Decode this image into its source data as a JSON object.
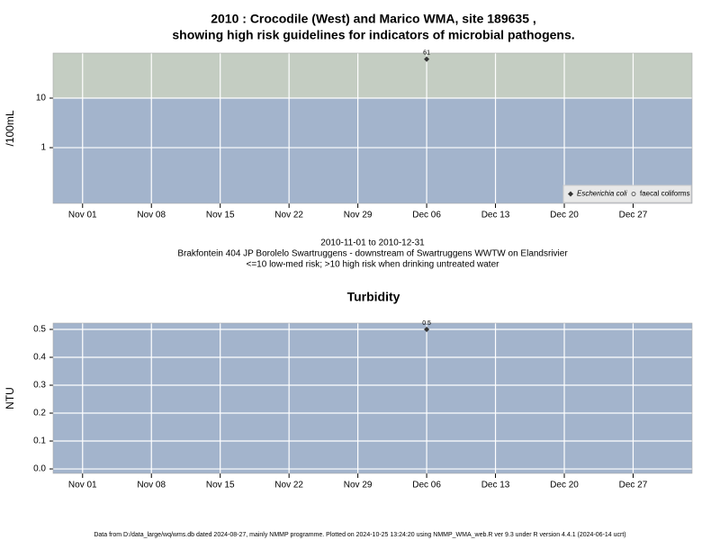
{
  "chart_data": [
    {
      "type": "scatter",
      "title": [
        "2010 : Crocodile (West) and Marico WMA, site 189635 ,",
        "showing high risk guidelines for indicators of microbial pathogens."
      ],
      "y_label": "/100mL",
      "log_scale": true,
      "ylim": [
        0.075,
        81
      ],
      "yticks": [
        1,
        10
      ],
      "xlim": [
        "2010-10-29",
        "2011-01-02"
      ],
      "xticks": [
        {
          "value": "2010-11-01",
          "label": "Nov 01"
        },
        {
          "value": "2010-11-08",
          "label": "Nov 08"
        },
        {
          "value": "2010-11-15",
          "label": "Nov 15"
        },
        {
          "value": "2010-11-22",
          "label": "Nov 22"
        },
        {
          "value": "2010-11-29",
          "label": "Nov 29"
        },
        {
          "value": "2010-12-06",
          "label": "Dec 06"
        },
        {
          "value": "2010-12-13",
          "label": "Dec 13"
        },
        {
          "value": "2010-12-20",
          "label": "Dec 20"
        },
        {
          "value": "2010-12-27",
          "label": "Dec 27"
        }
      ],
      "grid": true,
      "guideline": 10,
      "high_risk_color": "#c4cdc2",
      "low_risk_color": "#a3b4cc",
      "legend": "bottom-right",
      "series": [
        {
          "name": "Escherichia coli",
          "color": "#333333",
          "marker": "diamond",
          "x": [
            "2010-12-06"
          ],
          "values": [
            61
          ]
        },
        {
          "name": "faecal coliforms",
          "color": "#333333",
          "marker": "circle",
          "x": [],
          "values": []
        }
      ],
      "caption": [
        "2010-11-01 to 2010-12-31",
        "Brakfontein 404 JP Borolelo Swartruggens - downstream of Swartruggens WWTW on Elandsrivier",
        "<=10 low-med risk; >10 high risk when drinking untreated water"
      ]
    },
    {
      "type": "scatter",
      "title": [
        "Turbidity"
      ],
      "y_label": "NTU",
      "log_scale": false,
      "ylim": [
        -0.016,
        0.5226
      ],
      "yticks": [
        {
          "value": 0,
          "label": "0.0"
        },
        0.1,
        0.2,
        0.3,
        0.4,
        0.5
      ],
      "xlim": [
        "2010-10-29",
        "2011-01-02"
      ],
      "xticks": [
        {
          "value": "2010-11-01",
          "label": "Nov 01"
        },
        {
          "value": "2010-11-08",
          "label": "Nov 08"
        },
        {
          "value": "2010-11-15",
          "label": "Nov 15"
        },
        {
          "value": "2010-11-22",
          "label": "Nov 22"
        },
        {
          "value": "2010-11-29",
          "label": "Nov 29"
        },
        {
          "value": "2010-12-06",
          "label": "Dec 06"
        },
        {
          "value": "2010-12-13",
          "label": "Dec 13"
        },
        {
          "value": "2010-12-20",
          "label": "Dec 20"
        },
        {
          "value": "2010-12-27",
          "label": "Dec 27"
        }
      ],
      "grid": true,
      "low_risk_color": "#a3b4cc",
      "series": [
        {
          "name": "Turbidity",
          "color": "#333333",
          "marker": "diamond",
          "x": [
            "2010-12-06"
          ],
          "values": [
            0.5
          ]
        }
      ]
    }
  ],
  "footer": "Data from D:/data_large/wq/wms.db dated 2024-08-27, mainly NMMP programme. Plotted on 2024-10-25 13:24:20 using NMMP_WMA_web.R ver 9.3 under R version 4.4.1 (2024-06-14 ucrt)"
}
